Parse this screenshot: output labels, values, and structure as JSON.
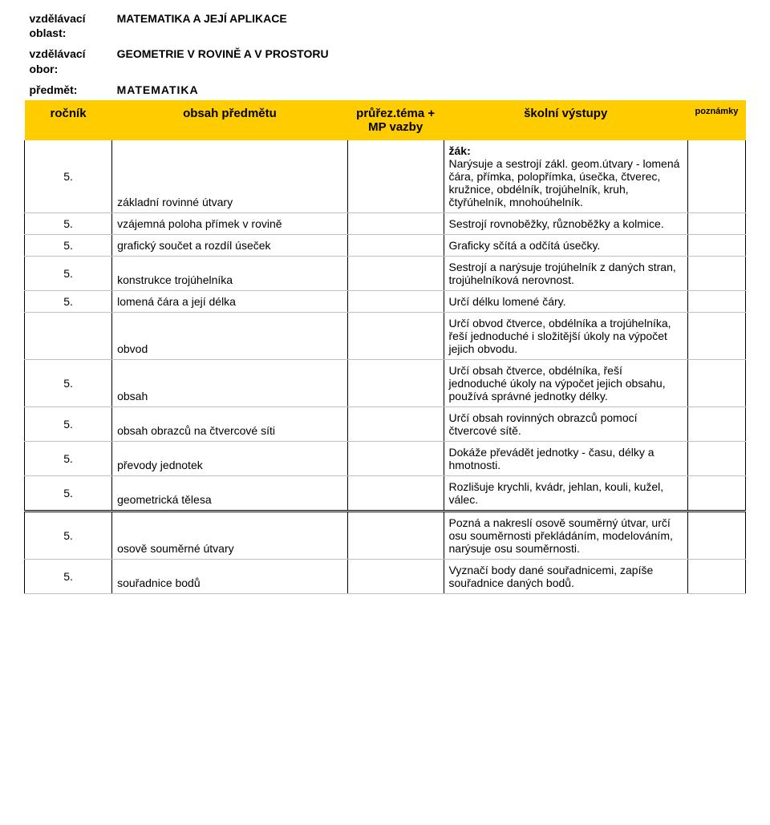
{
  "meta": {
    "field_area_label": "vzdělávací oblast:",
    "field_area_value": "MATEMATIKA A JEJÍ APLIKACE",
    "field_branch_label": "vzdělávací obor:",
    "field_branch_value": "GEOMETRIE V ROVINĚ A V PROSTORU",
    "field_subject_label": "předmět:",
    "field_subject_value": "MATEMATIKA"
  },
  "headers": {
    "col1": "ročník",
    "col2": "obsah předmětu",
    "col3": "průřez.téma + MP vazby",
    "col4": "školní výstupy",
    "col5": "poznámky"
  },
  "zak_label": "žák:",
  "rows": [
    {
      "grade": "5.",
      "topic": "základní rovinné útvary",
      "out": "Narýsuje a sestrojí zákl. geom.útvary - lomená čára, přímka, polopřímka, úsečka, čtverec, kružnice, obdélník, trojúhelník, kruh, čtyřúhelník, mnohoúhelník."
    },
    {
      "grade": "5.",
      "topic": "vzájemná poloha přímek v rovině",
      "out": "Sestrojí rovnoběžky, různoběžky a kolmice."
    },
    {
      "grade": "5.",
      "topic": "grafický součet a rozdíl úseček",
      "out": "Graficky sčítá a odčítá úsečky."
    },
    {
      "grade": "5.",
      "topic": "konstrukce trojúhelníka",
      "out": "Sestrojí a narýsuje trojúhelník z daných stran, trojúhelníková nerovnost."
    },
    {
      "grade": "5.",
      "topic": "lomená čára a její délka",
      "out": "Určí délku lomené čáry."
    },
    {
      "grade": "",
      "topic": "obvod",
      "out": "Určí obvod čtverce, obdélníka a trojúhelníka, řeší jednoduché i složitější úkoly na výpočet jejich obvodu."
    },
    {
      "grade": "5.",
      "topic": "obsah",
      "out": "Určí obsah čtverce, obdélníka, řeší jednoduché úkoly na výpočet jejich obsahu, používá správné jednotky délky."
    },
    {
      "grade": "5.",
      "topic": "obsah obrazců na čtvercové síti",
      "out": "Určí obsah rovinných obrazců pomocí čtvercové sítě."
    },
    {
      "grade": "5.",
      "topic": "převody jednotek",
      "out": "Dokáže převádět jednotky - času, délky a hmotnosti."
    },
    {
      "grade": "5.",
      "topic": "geometrická tělesa",
      "out": "Rozlišuje krychli, kvádr, jehlan, kouli, kužel, válec."
    },
    {
      "grade": "5.",
      "topic": "osově souměrné útvary",
      "out": "Pozná a nakreslí osově souměrný útvar, určí osu souměrnosti překládáním, modelováním, narýsuje osu souměrnosti."
    },
    {
      "grade": "5.",
      "topic": "souřadnice bodů",
      "out": "Vyznačí body dané souřadnicemi, zapíše souřadnice daných bodů."
    }
  ]
}
